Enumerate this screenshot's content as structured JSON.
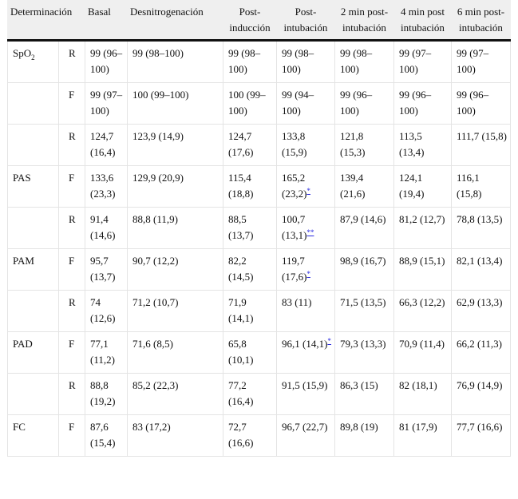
{
  "headers": [
    "Determinación",
    "Basal",
    "Desnitrogenación",
    "Post-inducción",
    "Post-intubación",
    "2 min post-intubación",
    "4 min post intubación",
    "6 min post-intubación"
  ],
  "rows": [
    {
      "group": "SpO",
      "group_sub": "2",
      "type": "R",
      "cells": [
        "99 (96–100)",
        "99 (98–100)",
        "99 (98–100)",
        "99 (98–100)",
        "99 (98–100)",
        "99 (97–100)",
        "99 (97–100)"
      ],
      "notes": [
        "",
        "",
        "",
        "",
        "",
        "",
        ""
      ]
    },
    {
      "group": "",
      "group_sub": "",
      "type": "F",
      "cells": [
        "99 (97–100)",
        "100 (99–100)",
        "100 (99–100)",
        "99 (94–100)",
        "99 (96–100)",
        "99 (96–100)",
        "99 (96–100)"
      ],
      "notes": [
        "",
        "",
        "",
        "",
        "",
        "",
        ""
      ]
    },
    {
      "group": "",
      "group_sub": "",
      "type": "R",
      "cells": [
        "124,7 (16,4)",
        "123,9 (14,9)",
        "124,7 (17,6)",
        "133,8 (15,9)",
        "121,8 (15,3)",
        "113,5 (13,4)",
        "111,7 (15,8)"
      ],
      "notes": [
        "",
        "",
        "",
        "",
        "",
        "",
        ""
      ]
    },
    {
      "group": "PAS",
      "group_sub": "",
      "type": "F",
      "cells": [
        "133,6 (23,3)",
        "129,9 (20,9)",
        "115,4 (18,8)",
        "165,2 (23,2)",
        "139,4 (21,6)",
        "124,1 (19,4)",
        "116,1 (15,8)"
      ],
      "notes": [
        "",
        "",
        "",
        "*",
        "",
        "",
        ""
      ]
    },
    {
      "group": "",
      "group_sub": "",
      "type": "R",
      "cells": [
        "91,4 (14,6)",
        "88,8 (11,9)",
        "88,5 (13,7)",
        "100,7 (13,1)",
        "87,9 (14,6)",
        "81,2 (12,7)",
        "78,8 (13,5)"
      ],
      "notes": [
        "",
        "",
        "",
        "**",
        "",
        "",
        ""
      ]
    },
    {
      "group": "PAM",
      "group_sub": "",
      "type": "F",
      "cells": [
        "95,7 (13,7)",
        "90,7 (12,2)",
        "82,2 (14,5)",
        "119,7 (17,6)",
        "98,9 (16,7)",
        "88,9 (15,1)",
        "82,1 (13,4)"
      ],
      "notes": [
        "",
        "",
        "",
        "*",
        "",
        "",
        ""
      ]
    },
    {
      "group": "",
      "group_sub": "",
      "type": "R",
      "cells": [
        "74 (12,6)",
        "71,2 (10,7)",
        "71,9 (14,1)",
        "83 (11)",
        "71,5 (13,5)",
        "66,3 (12,2)",
        "62,9 (13,3)"
      ],
      "notes": [
        "",
        "",
        "",
        "",
        "",
        "",
        ""
      ]
    },
    {
      "group": "PAD",
      "group_sub": "",
      "type": "F",
      "cells": [
        "77,1 (11,2)",
        "71,6 (8,5)",
        "65,8 (10,1)",
        "96,1 (14,1)",
        "79,3 (13,3)",
        "70,9 (11,4)",
        "66,2 (11,3)"
      ],
      "notes": [
        "",
        "",
        "",
        "*",
        "",
        "",
        ""
      ]
    },
    {
      "group": "",
      "group_sub": "",
      "type": "R",
      "cells": [
        "88,8 (19,2)",
        "85,2 (22,3)",
        "77,2 (16,4)",
        "91,5 (15,9)",
        "86,3 (15)",
        "82 (18,1)",
        "76,9 (14,9)"
      ],
      "notes": [
        "",
        "",
        "",
        "",
        "",
        "",
        ""
      ]
    },
    {
      "group": "FC",
      "group_sub": "",
      "type": "F",
      "cells": [
        "87,6 (15,4)",
        "83 (17,2)",
        "72,7 (16,6)",
        "96,7 (22,7)",
        "89,8 (19)",
        "81 (17,9)",
        "77,7 (16,6)"
      ],
      "notes": [
        "",
        "",
        "",
        "",
        "",
        "",
        ""
      ]
    }
  ]
}
